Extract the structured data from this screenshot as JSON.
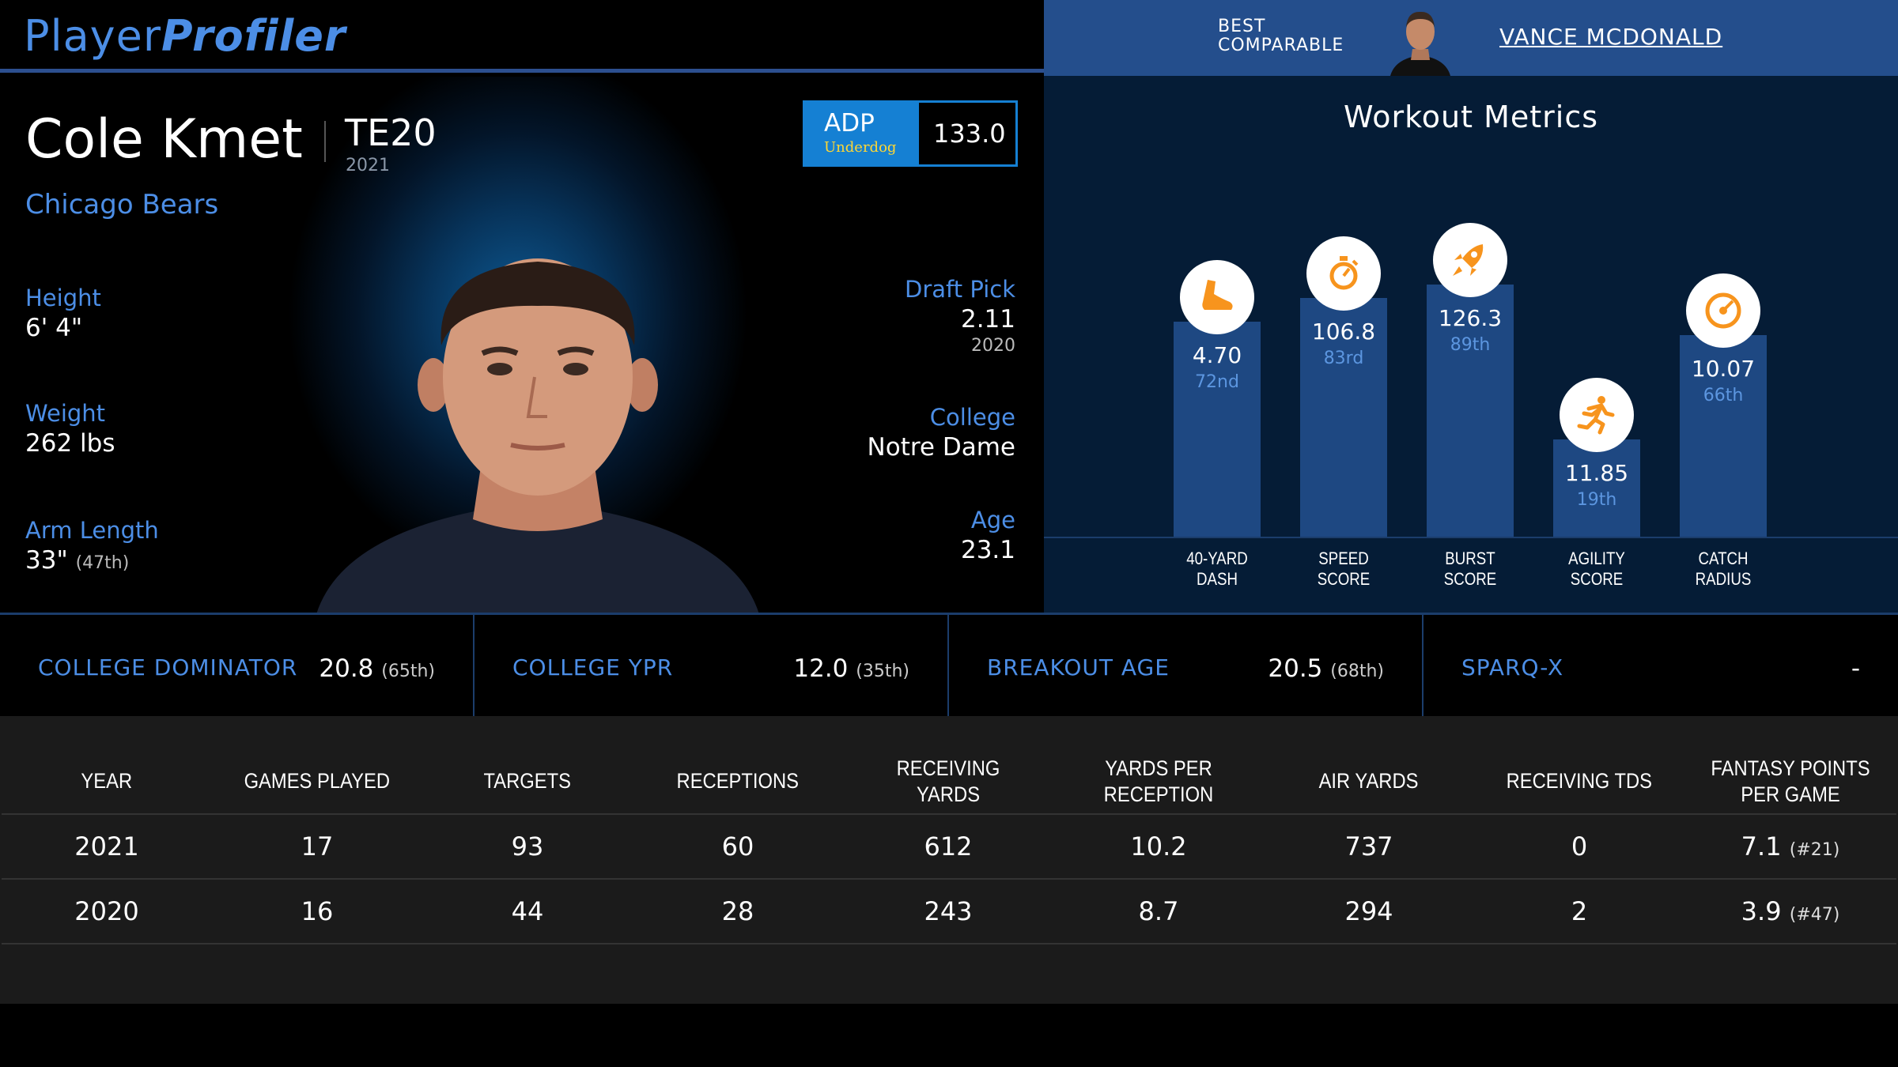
{
  "brand": {
    "logo_light": "Player",
    "logo_bold": "Profiler"
  },
  "comparable": {
    "label_line1": "BEST",
    "label_line2": "COMPARABLE",
    "name": "VANCE MCDONALD"
  },
  "player": {
    "name": "Cole Kmet",
    "position_rank": "TE20",
    "season": "2021",
    "team": "Chicago Bears",
    "height": {
      "label": "Height",
      "value": "6' 4\""
    },
    "weight": {
      "label": "Weight",
      "value": "262 lbs"
    },
    "arm_length": {
      "label": "Arm Length",
      "value": "33\"",
      "rank": "(47th)"
    },
    "draft_pick": {
      "label": "Draft Pick",
      "value": "2.11",
      "year": "2020"
    },
    "college": {
      "label": "College",
      "value": "Notre Dame"
    },
    "age": {
      "label": "Age",
      "value": "23.1"
    }
  },
  "adp": {
    "label": "ADP",
    "source": "Underdog",
    "value": "133.0"
  },
  "workout": {
    "title": "Workout Metrics",
    "metrics": [
      {
        "label1": "40-YARD",
        "label2": "DASH",
        "value": "4.70",
        "percentile": "72nd",
        "pct": 72,
        "icon": "shoe-icon"
      },
      {
        "label1": "SPEED",
        "label2": "SCORE",
        "value": "106.8",
        "percentile": "83rd",
        "pct": 83,
        "icon": "stopwatch-icon"
      },
      {
        "label1": "BURST",
        "label2": "SCORE",
        "value": "126.3",
        "percentile": "89th",
        "pct": 89,
        "icon": "rocket-icon"
      },
      {
        "label1": "AGILITY",
        "label2": "SCORE",
        "value": "11.85",
        "percentile": "19th",
        "pct": 19,
        "icon": "runner-icon"
      },
      {
        "label1": "CATCH",
        "label2": "RADIUS",
        "value": "10.07",
        "percentile": "66th",
        "pct": 66,
        "icon": "target-icon"
      }
    ],
    "accent": "#f7941d"
  },
  "college_stats": [
    {
      "label": "COLLEGE DOMINATOR",
      "value": "20.8",
      "rank": "(65th)"
    },
    {
      "label": "COLLEGE YPR",
      "value": "12.0",
      "rank": "(35th)"
    },
    {
      "label": "BREAKOUT AGE",
      "value": "20.5",
      "rank": "(68th)"
    },
    {
      "label": "SPARQ-X",
      "value": "-",
      "rank": ""
    }
  ],
  "stats_table": {
    "headers": [
      "YEAR",
      "GAMES PLAYED",
      "TARGETS",
      "RECEPTIONS",
      "RECEIVING YARDS",
      "YARDS PER RECEPTION",
      "AIR YARDS",
      "RECEIVING TDS",
      "FANTASY POINTS PER GAME"
    ],
    "rows": [
      {
        "cells": [
          "2021",
          "17",
          "93",
          "60",
          "612",
          "10.2",
          "737",
          "0",
          "7.1"
        ],
        "fp_rank": "(#21)"
      },
      {
        "cells": [
          "2020",
          "16",
          "44",
          "28",
          "243",
          "8.7",
          "294",
          "2",
          "3.9"
        ],
        "fp_rank": "(#47)"
      }
    ]
  }
}
